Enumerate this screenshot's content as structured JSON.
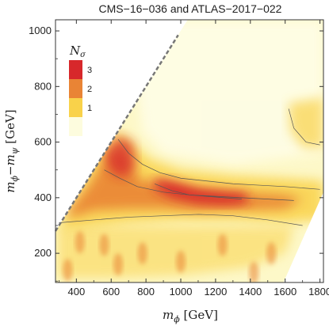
{
  "chart_data": {
    "type": "heatmap",
    "title": "CMS−16−036 and ATLAS−2017−022",
    "xlabel": {
      "var": "m",
      "sub": "ϕ",
      "unit": " [GeV]"
    },
    "ylabel": {
      "var": "m",
      "sub1": "ϕ",
      "mid": "−m",
      "sub2": "ψ",
      "unit": " [GeV]"
    },
    "xlim": [
      280,
      1820
    ],
    "ylim": [
      95,
      1040
    ],
    "x_ticks": [
      400,
      600,
      800,
      1000,
      1200,
      1400,
      1600,
      1800
    ],
    "x_tick_labels": [
      "400",
      "600",
      "800",
      "1000",
      "1200",
      "1400",
      "1600",
      "1800"
    ],
    "y_ticks": [
      200,
      400,
      600,
      800,
      1000
    ],
    "y_tick_labels": [
      "200",
      "400",
      "600",
      "800",
      "1000"
    ],
    "colorbar": {
      "title": {
        "var": "N",
        "sub": "σ"
      },
      "levels": [
        {
          "label": "3",
          "color": "#d7282b"
        },
        {
          "label": "2",
          "color": "#e98435"
        },
        {
          "label": "1",
          "color": "#f9d24a"
        },
        {
          "label": "",
          "color": "#fdfcde"
        }
      ]
    },
    "regions": [
      {
        "name": "kinematic-boundary",
        "label": "m_psi = 0",
        "x": [
          280,
          985
        ],
        "y": [
          280,
          985
        ],
        "style": "dashed"
      },
      {
        "name": "contour-1-upper",
        "level": 1,
        "x": [
          640,
          700,
          780,
          880,
          1000,
          1150,
          1300,
          1450,
          1600,
          1800
        ],
        "y": [
          610,
          560,
          520,
          490,
          470,
          460,
          450,
          445,
          440,
          430
        ]
      },
      {
        "name": "contour-2-band",
        "level": 2,
        "x": [
          560,
          650,
          750,
          900,
          1050,
          1200,
          1350,
          1500,
          1650
        ],
        "y": [
          500,
          470,
          440,
          420,
          410,
          405,
          400,
          395,
          390
        ]
      },
      {
        "name": "contour-3-band",
        "level": 3,
        "x": [
          850,
          950,
          1050,
          1150,
          1250,
          1350
        ],
        "y": [
          450,
          425,
          410,
          405,
          400,
          395
        ]
      },
      {
        "name": "contour-1-lower",
        "level": 1,
        "x": [
          300,
          500,
          700,
          900,
          1100,
          1300,
          1500,
          1700
        ],
        "y": [
          310,
          320,
          330,
          335,
          340,
          335,
          320,
          300
        ]
      },
      {
        "name": "contour-1-topright",
        "level": 1,
        "x": [
          1620,
          1650,
          1720,
          1800
        ],
        "y": [
          720,
          650,
          600,
          590
        ]
      }
    ]
  }
}
